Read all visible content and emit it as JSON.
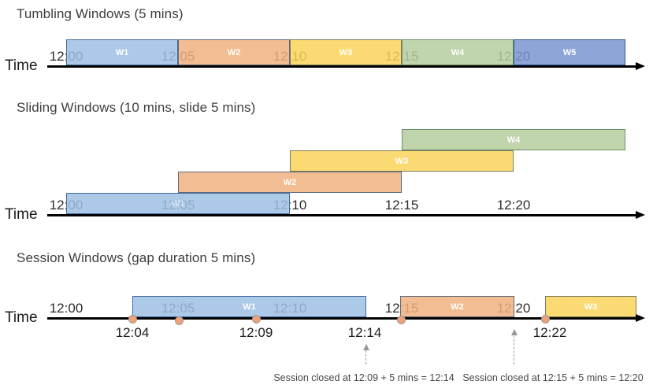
{
  "palette": {
    "blue_light": {
      "fill": "#9dbfe4",
      "border": "#44699d"
    },
    "orange": {
      "fill": "#f0b280",
      "border": "#5e6a7a"
    },
    "yellow": {
      "fill": "#fcd45a",
      "border": "#7e7c5e"
    },
    "green": {
      "fill": "#b5ce9c",
      "border": "#6f8d68"
    },
    "blue_medium": {
      "fill": "#7a95d0",
      "border": "#2f5597"
    },
    "event_dot": {
      "fill": "#f0a077",
      "border": "#9c9c9c"
    },
    "axis": "#000000",
    "annotation_arrow": "#979797"
  },
  "sections": [
    {
      "id": "tumbling",
      "title": "Tumbling Windows (5 mins)",
      "axis_label": "Time",
      "ticks": [
        "12:00",
        "12:05",
        "12:10",
        "12:15",
        "12:20"
      ],
      "windows": [
        {
          "label": "W1",
          "color": "blue_light",
          "start": "12:00",
          "end": "12:05"
        },
        {
          "label": "W2",
          "color": "orange",
          "start": "12:05",
          "end": "12:10"
        },
        {
          "label": "W3",
          "color": "yellow",
          "start": "12:10",
          "end": "12:15"
        },
        {
          "label": "W4",
          "color": "green",
          "start": "12:15",
          "end": "12:20"
        },
        {
          "label": "W5",
          "color": "blue_medium",
          "start": "12:20"
        }
      ]
    },
    {
      "id": "sliding",
      "title": "Sliding Windows (10 mins, slide 5 mins)",
      "axis_label": "Time",
      "ticks": [
        "12:00",
        "12:05",
        "12:10",
        "12:15",
        "12:20"
      ],
      "windows": [
        {
          "label": "W1",
          "color": "blue_light",
          "start": "12:00",
          "end": "12:10"
        },
        {
          "label": "W2",
          "color": "orange",
          "start": "12:05",
          "end": "12:15"
        },
        {
          "label": "W3",
          "color": "yellow",
          "start": "12:10",
          "end": "12:20"
        },
        {
          "label": "W4",
          "color": "green",
          "start": "12:15"
        }
      ]
    },
    {
      "id": "session",
      "title": "Session Windows (gap duration 5 mins)",
      "axis_label": "Time",
      "ticks": [
        "12:00",
        "12:05",
        "12:10",
        "12:15",
        "12:20"
      ],
      "windows": [
        {
          "label": "W1",
          "color": "blue_light",
          "start": "12:04",
          "end": "12:14"
        },
        {
          "label": "W2",
          "color": "orange",
          "start": "12:15",
          "end": "12:20"
        },
        {
          "label": "W3",
          "color": "yellow",
          "start": "12:22"
        }
      ],
      "event_dot_count": 5,
      "event_labels": [
        "12:04",
        "12:09",
        "12:14",
        "12:22"
      ],
      "annotations": [
        "Session closed at 12:09 + 5 mins = 12:14",
        "Session closed at 12:15 + 5 mins = 12:20"
      ]
    }
  ]
}
